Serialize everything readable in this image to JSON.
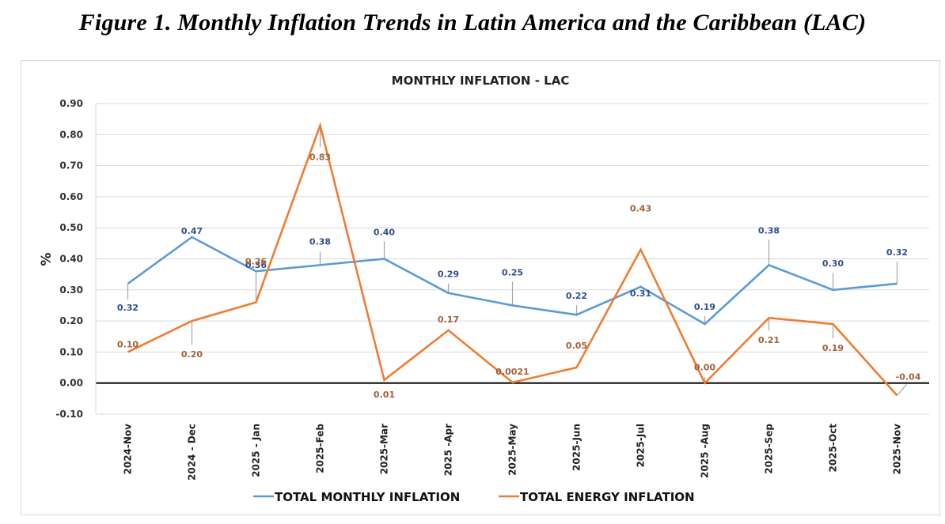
{
  "figure_title": "Figure 1. Monthly Inflation Trends in Latin America and the Caribbean (LAC)",
  "chart_data": {
    "type": "line",
    "title": "MONTHLY INFLATION - LAC",
    "xlabel": "",
    "ylabel": "%",
    "ylim": [
      -0.1,
      0.9
    ],
    "yticks": [
      -0.1,
      0.0,
      0.1,
      0.2,
      0.3,
      0.4,
      0.5,
      0.6,
      0.7,
      0.8,
      0.9
    ],
    "ytick_labels": [
      "-0.10",
      "0.00",
      "0.10",
      "0.20",
      "0.30",
      "0.40",
      "0.50",
      "0.60",
      "0.70",
      "0.80",
      "0.90"
    ],
    "grid": true,
    "legend_position": "bottom",
    "categories": [
      "2024-Nov",
      "2024 - Dec",
      "2025 - Jan",
      "2025-Feb",
      "2025-Mar",
      "2025 -Apr",
      "2025-May",
      "2025-Jun",
      "2025-Jul",
      "2025 -Aug",
      "2025-Sep",
      "2025-Oct",
      "2025-Nov"
    ],
    "series": [
      {
        "name": "TOTAL MONTHLY INFLATION",
        "color": "#5b9bd5",
        "label_color": "#2f4f8a",
        "values": [
          0.32,
          0.47,
          0.36,
          0.38,
          0.4,
          0.29,
          0.25,
          0.22,
          0.31,
          0.19,
          0.38,
          0.3,
          0.32
        ],
        "data_labels": [
          "0.32",
          "0.47",
          "0.36",
          "0.38",
          "0.40",
          "0.29",
          "0.25",
          "0.22",
          "0.31",
          "0.19",
          "0.38",
          "0.30",
          "0.32"
        ]
      },
      {
        "name": "TOTAL  ENERGY INFLATION",
        "color": "#ed7d31",
        "label_color": "#a0623a",
        "values": [
          0.1,
          0.2,
          0.26,
          0.83,
          0.01,
          0.17,
          0.0021,
          0.05,
          0.43,
          0.0,
          0.21,
          0.19,
          -0.04
        ],
        "data_labels": [
          "0.10",
          "0.20",
          "0.26",
          "0.83",
          "0.01",
          "0.17",
          "0.0021",
          "0.05",
          "0.43",
          "0.00",
          "0.21",
          "0.19",
          "-0.04"
        ]
      }
    ]
  }
}
